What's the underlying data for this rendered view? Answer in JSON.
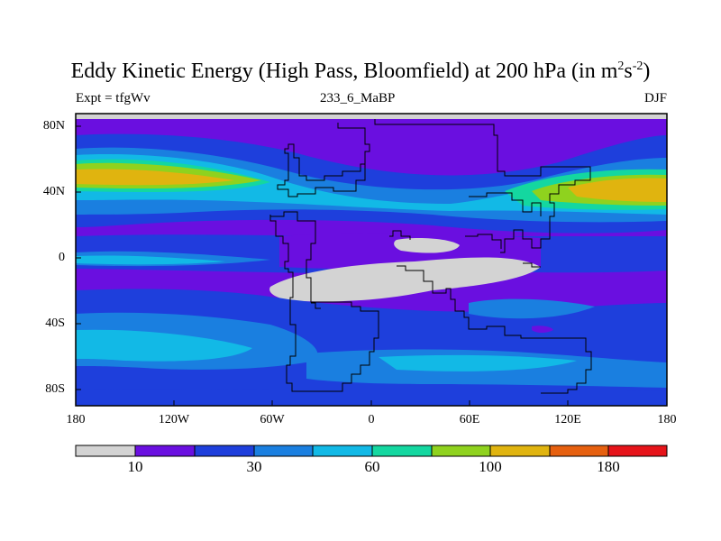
{
  "title": {
    "main": "Eddy Kinetic Energy (High Pass, Bloomfield) at 200 hPa (in m",
    "sup1": "2",
    "mid": "s",
    "sup2": "-2",
    "end": ")"
  },
  "subtitle": {
    "left": "Expt = tfgWv",
    "center": "233_6_MaBP",
    "right": "DJF"
  },
  "axes": {
    "x_ticks": [
      "180",
      "120W",
      "60W",
      "0",
      "60E",
      "120E",
      "180"
    ],
    "y_ticks": [
      "80N",
      "40N",
      "0",
      "40S",
      "80S"
    ]
  },
  "colorbar": {
    "colors": [
      "#d3d3d3",
      "#6a0fe0",
      "#1e3fdc",
      "#1a7fe0",
      "#12b9e6",
      "#14d7a0",
      "#8fd21e",
      "#e0b40f",
      "#e6600f",
      "#e6141a"
    ],
    "labels": [
      "10",
      "30",
      "60",
      "100",
      "180"
    ]
  },
  "colors": {
    "background_field": "#6a0fe0",
    "outline": "#000000"
  }
}
